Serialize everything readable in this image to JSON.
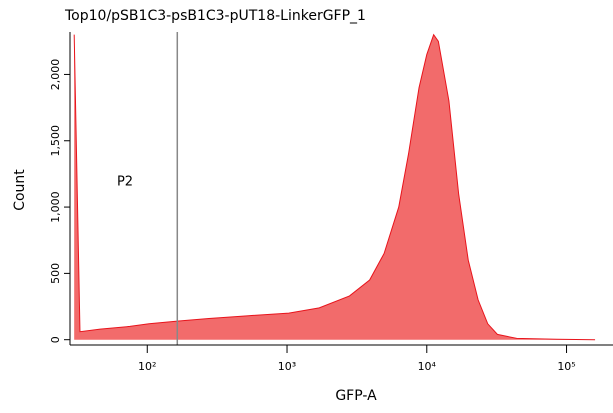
{
  "chart_data": {
    "type": "area",
    "title": "Top10/pSB1C3-psB1C3-pUT18-LinkerGFP_1",
    "x_label": "GFP-A",
    "y_label": "Count",
    "log_x": true,
    "color": "#f26b6b",
    "line_color": "#e8141c",
    "x": [
      30,
      33,
      46,
      75,
      103,
      164,
      276,
      515,
      1030,
      1700,
      2800,
      3900,
      4950,
      6300,
      7400,
      8800,
      10000,
      11200,
      12100,
      14400,
      16900,
      19800,
      23300,
      27300,
      32000,
      44000,
      85000,
      160000
    ],
    "values": [
      2300,
      60,
      80,
      100,
      120,
      140,
      160,
      180,
      200,
      240,
      330,
      450,
      650,
      1000,
      1400,
      1900,
      2150,
      2300,
      2250,
      1800,
      1100,
      600,
      300,
      120,
      40,
      10,
      3,
      0
    ],
    "xlim": [
      28,
      215000
    ],
    "ylim": [
      -40,
      2320
    ],
    "xticks": [
      {
        "value": 100,
        "label": "10²"
      },
      {
        "value": 1000,
        "label": "10³"
      },
      {
        "value": 10000,
        "label": "10⁴"
      },
      {
        "value": 100000,
        "label": "10⁵"
      }
    ],
    "yticks": [
      0,
      {
        "value": 500,
        "label": "500"
      },
      {
        "value": 1000,
        "label": "1,000"
      },
      {
        "value": 1500,
        "label": "1,500"
      },
      {
        "value": 2000,
        "label": "2,000"
      }
    ],
    "gate": {
      "label": "P2",
      "x": 164
    }
  }
}
